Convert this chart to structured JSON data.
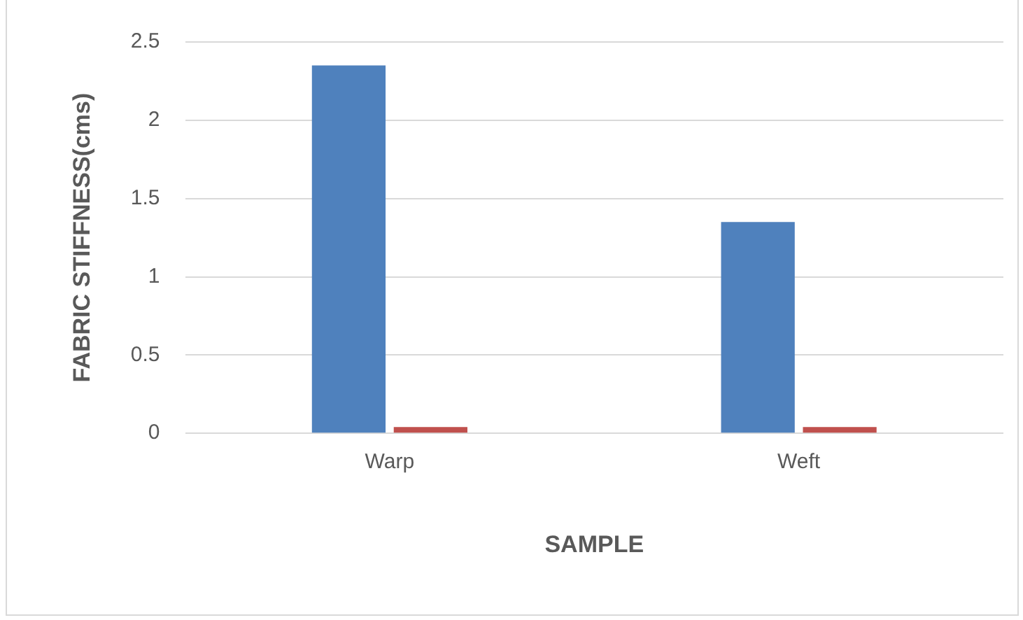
{
  "chart_data": {
    "type": "bar",
    "xlabel": "SAMPLE",
    "ylabel": "FABRIC STIFFNESS(cms)",
    "categories": [
      "Warp",
      "Weft"
    ],
    "series": [
      {
        "color": "#4f81bd",
        "values": [
          2.35,
          1.35
        ]
      },
      {
        "color": "#c0504d",
        "values": [
          0.04,
          0.04
        ]
      }
    ],
    "ylim": [
      0,
      2.5
    ],
    "yticks": [
      0,
      0.5,
      1,
      1.5,
      2,
      2.5
    ],
    "grid": "y",
    "legend": false
  }
}
